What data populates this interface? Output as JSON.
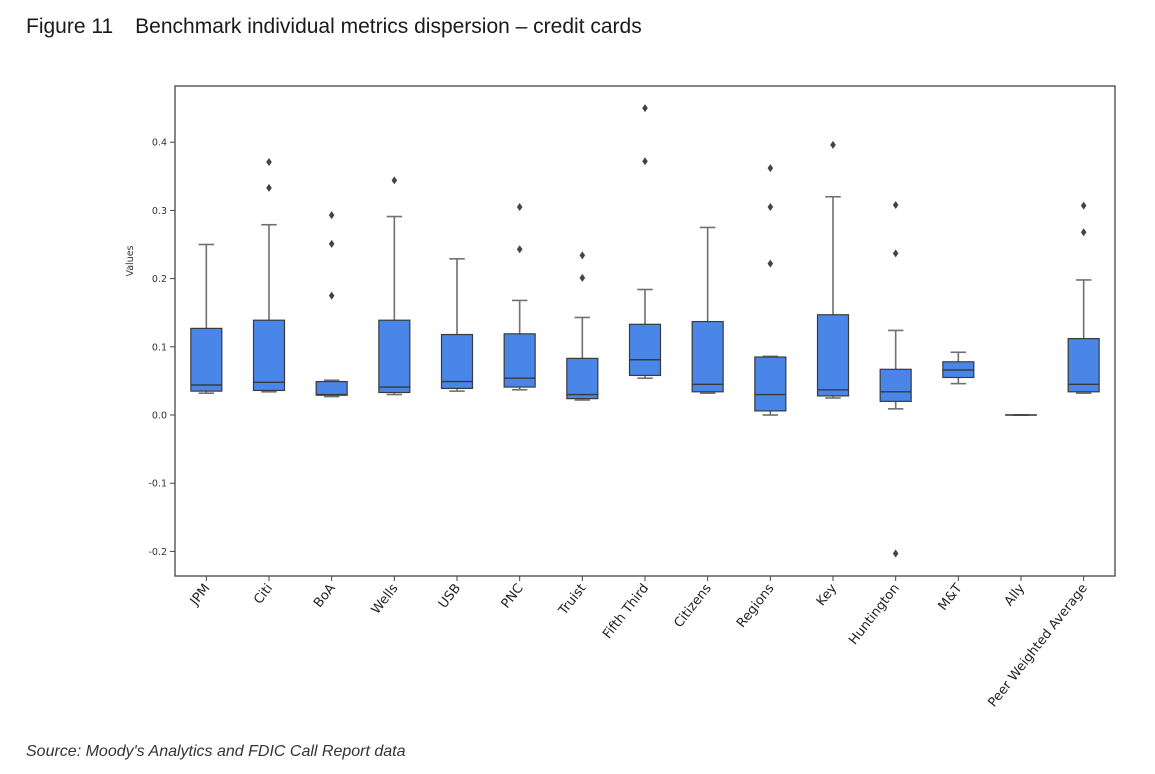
{
  "figure": {
    "number": "Figure 11",
    "title": "Benchmark individual metrics dispersion – credit cards",
    "source": "Source: Moody's Analytics and FDIC Call Report data"
  },
  "colors": {
    "box_fill": "#4a86e8",
    "box_edge": "#3a3a3a",
    "whisker": "#707070",
    "frame": "#444444"
  },
  "chart_data": {
    "type": "box",
    "title": "",
    "xlabel": "",
    "ylabel": "Values",
    "ylim": [
      -0.23,
      0.48
    ],
    "yticks": [
      "-0.2",
      "-0.1",
      "0.0",
      "0.1",
      "0.2",
      "0.3",
      "0.4"
    ],
    "grid": false,
    "legend": "none",
    "categories": [
      "JPM",
      "Citi",
      "BoA",
      "Wells",
      "USB",
      "PNC",
      "Truist",
      "Fifth Third",
      "Citizens",
      "Regions",
      "Key",
      "Huntington",
      "M&T",
      "Ally",
      "Peer Weighted Average"
    ],
    "boxes": [
      {
        "whislo": 0.032,
        "q1": 0.035,
        "med": 0.044,
        "q3": 0.127,
        "whishi": 0.25,
        "fliers": []
      },
      {
        "whislo": 0.034,
        "q1": 0.036,
        "med": 0.048,
        "q3": 0.139,
        "whishi": 0.279,
        "fliers": [
          0.333,
          0.371
        ]
      },
      {
        "whislo": 0.027,
        "q1": 0.029,
        "med": 0.03,
        "q3": 0.049,
        "whishi": 0.051,
        "fliers": [
          0.175,
          0.251,
          0.293
        ]
      },
      {
        "whislo": 0.03,
        "q1": 0.033,
        "med": 0.041,
        "q3": 0.139,
        "whishi": 0.291,
        "fliers": [
          0.344
        ]
      },
      {
        "whislo": 0.035,
        "q1": 0.039,
        "med": 0.049,
        "q3": 0.118,
        "whishi": 0.229,
        "fliers": []
      },
      {
        "whislo": 0.037,
        "q1": 0.041,
        "med": 0.054,
        "q3": 0.119,
        "whishi": 0.168,
        "fliers": [
          0.243,
          0.305
        ]
      },
      {
        "whislo": 0.022,
        "q1": 0.024,
        "med": 0.03,
        "q3": 0.083,
        "whishi": 0.143,
        "fliers": [
          0.201,
          0.234
        ]
      },
      {
        "whislo": 0.054,
        "q1": 0.058,
        "med": 0.081,
        "q3": 0.133,
        "whishi": 0.184,
        "fliers": [
          0.372,
          0.45
        ]
      },
      {
        "whislo": 0.032,
        "q1": 0.034,
        "med": 0.045,
        "q3": 0.137,
        "whishi": 0.275,
        "fliers": []
      },
      {
        "whislo": 0.0,
        "q1": 0.006,
        "med": 0.03,
        "q3": 0.085,
        "whishi": 0.086,
        "fliers": [
          0.222,
          0.305,
          0.362
        ]
      },
      {
        "whislo": 0.025,
        "q1": 0.028,
        "med": 0.037,
        "q3": 0.147,
        "whishi": 0.32,
        "fliers": [
          0.396
        ]
      },
      {
        "whislo": 0.009,
        "q1": 0.02,
        "med": 0.034,
        "q3": 0.067,
        "whishi": 0.124,
        "fliers": [
          0.237,
          0.308,
          -0.203
        ]
      },
      {
        "whislo": 0.046,
        "q1": 0.055,
        "med": 0.066,
        "q3": 0.078,
        "whishi": 0.092,
        "fliers": []
      },
      {
        "whislo": 0.0,
        "q1": 0.0,
        "med": 0.0,
        "q3": 0.0,
        "whishi": 0.0,
        "fliers": []
      },
      {
        "whislo": 0.032,
        "q1": 0.034,
        "med": 0.045,
        "q3": 0.112,
        "whishi": 0.198,
        "fliers": [
          0.268,
          0.307
        ]
      }
    ]
  }
}
